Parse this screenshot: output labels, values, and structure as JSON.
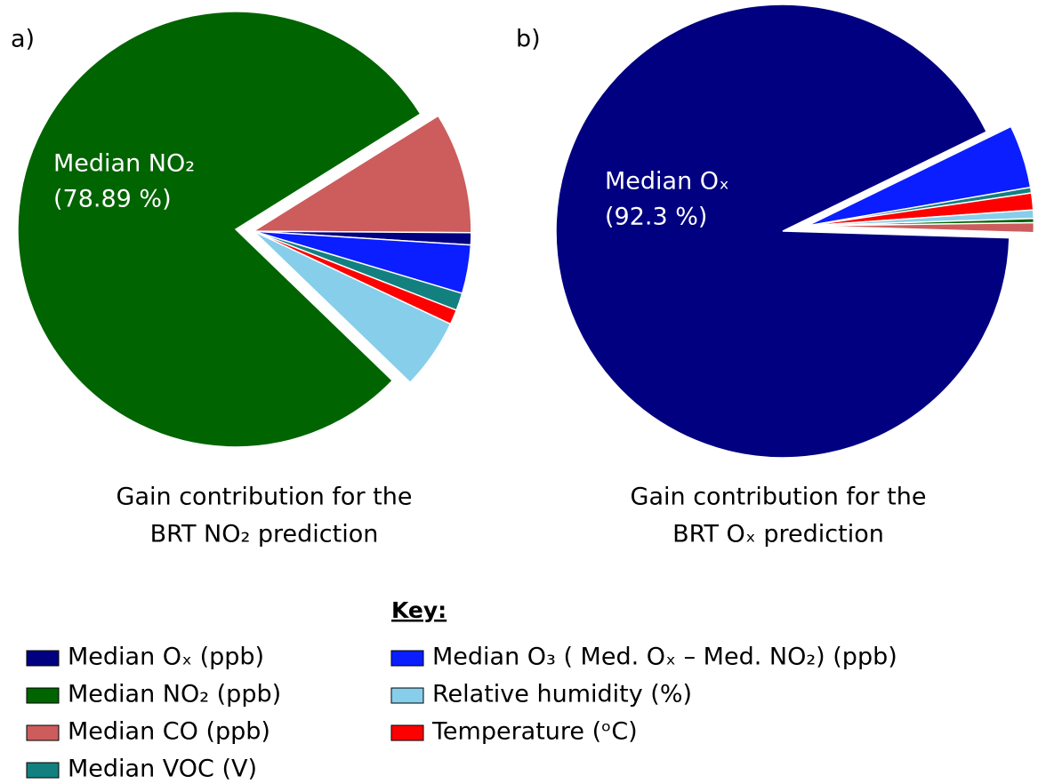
{
  "chart_data": [
    {
      "type": "pie",
      "panel_label": "a)",
      "title": [
        "Gain contribution for the",
        "BRT NO₂ prediction"
      ],
      "slice_label": "Median NO₂",
      "categories": [
        "Median CO (ppb)",
        "Median Oₓ (ppb)",
        "Median O₃ ( Med. Oₓ – Med. NO₂) (ppb)",
        "Median VOC (V)",
        "Temperature (ᵒC)",
        "Relative humidity (%)",
        "Median NO₂ (ppb)"
      ],
      "values": [
        9.0,
        0.9,
        3.6,
        1.3,
        1.1,
        5.21,
        78.89
      ],
      "value_labels": [
        null,
        null,
        null,
        null,
        null,
        null,
        "(78.89 %)"
      ]
    },
    {
      "type": "pie",
      "panel_label": "b)",
      "title": [
        "Gain contribution for the",
        "BRT Oₓ prediction"
      ],
      "slice_label": "Median Oₓ",
      "categories": [
        "Median O₃ ( Med. Oₓ – Med. NO₂) (ppb)",
        "Median VOC (V)",
        "Temperature (ᵒC)",
        "Relative humidity (%)",
        "Median NO₂ (ppb)",
        "Median CO (ppb)",
        "Median Oₓ (ppb)"
      ],
      "values": [
        4.5,
        0.4,
        1.2,
        0.6,
        0.3,
        0.7,
        92.3
      ],
      "value_labels": [
        null,
        null,
        null,
        null,
        null,
        null,
        "(92.3 %)"
      ]
    }
  ],
  "legend": {
    "title": "Key:",
    "items": [
      {
        "name": "Median Oₓ (ppb)",
        "color": "#000080"
      },
      {
        "name": "Median NO₂ (ppb)",
        "color": "#006400"
      },
      {
        "name": "Median CO (ppb)",
        "color": "#cd5c5c"
      },
      {
        "name": "Median VOC (V)",
        "color": "#138080"
      },
      {
        "name": "Median O₃ ( Med. Oₓ – Med. NO₂) (ppb)",
        "color": "#0a1eff"
      },
      {
        "name": "Relative humidity (%)",
        "color": "#87ceeb"
      },
      {
        "name": "Temperature (ᵒC)",
        "color": "#ff0000"
      }
    ]
  }
}
